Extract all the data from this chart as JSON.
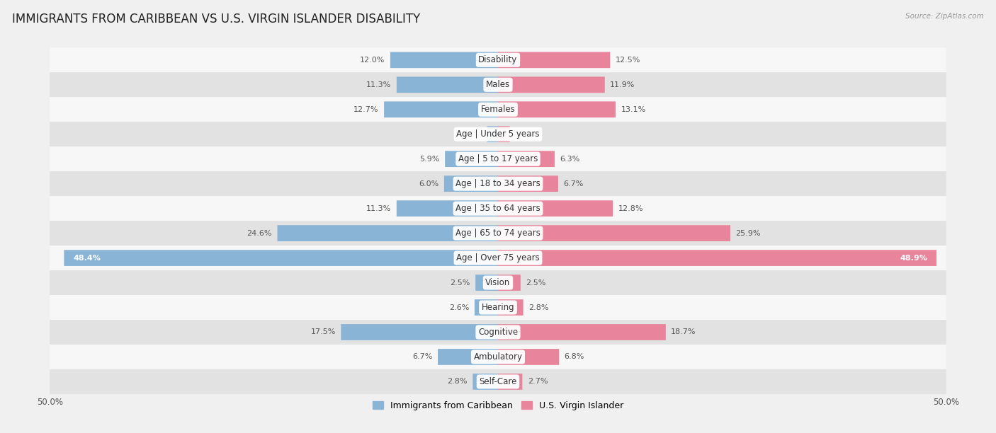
{
  "title": "IMMIGRANTS FROM CARIBBEAN VS U.S. VIRGIN ISLANDER DISABILITY",
  "source": "Source: ZipAtlas.com",
  "categories": [
    "Disability",
    "Males",
    "Females",
    "Age | Under 5 years",
    "Age | 5 to 17 years",
    "Age | 18 to 34 years",
    "Age | 35 to 64 years",
    "Age | 65 to 74 years",
    "Age | Over 75 years",
    "Vision",
    "Hearing",
    "Cognitive",
    "Ambulatory",
    "Self-Care"
  ],
  "left_values": [
    12.0,
    11.3,
    12.7,
    1.2,
    5.9,
    6.0,
    11.3,
    24.6,
    48.4,
    2.5,
    2.6,
    17.5,
    6.7,
    2.8
  ],
  "right_values": [
    12.5,
    11.9,
    13.1,
    1.3,
    6.3,
    6.7,
    12.8,
    25.9,
    48.9,
    2.5,
    2.8,
    18.7,
    6.8,
    2.7
  ],
  "left_color": "#8ab4d6",
  "right_color": "#e8849c",
  "max_val": 50.0,
  "bar_height": 0.62,
  "background_color": "#f0f0f0",
  "row_bg_light": "#f7f7f7",
  "row_bg_dark": "#e2e2e2",
  "title_fontsize": 12,
  "label_fontsize": 8.5,
  "value_fontsize": 8.0,
  "legend_label_left": "Immigrants from Caribbean",
  "legend_label_right": "U.S. Virgin Islander"
}
